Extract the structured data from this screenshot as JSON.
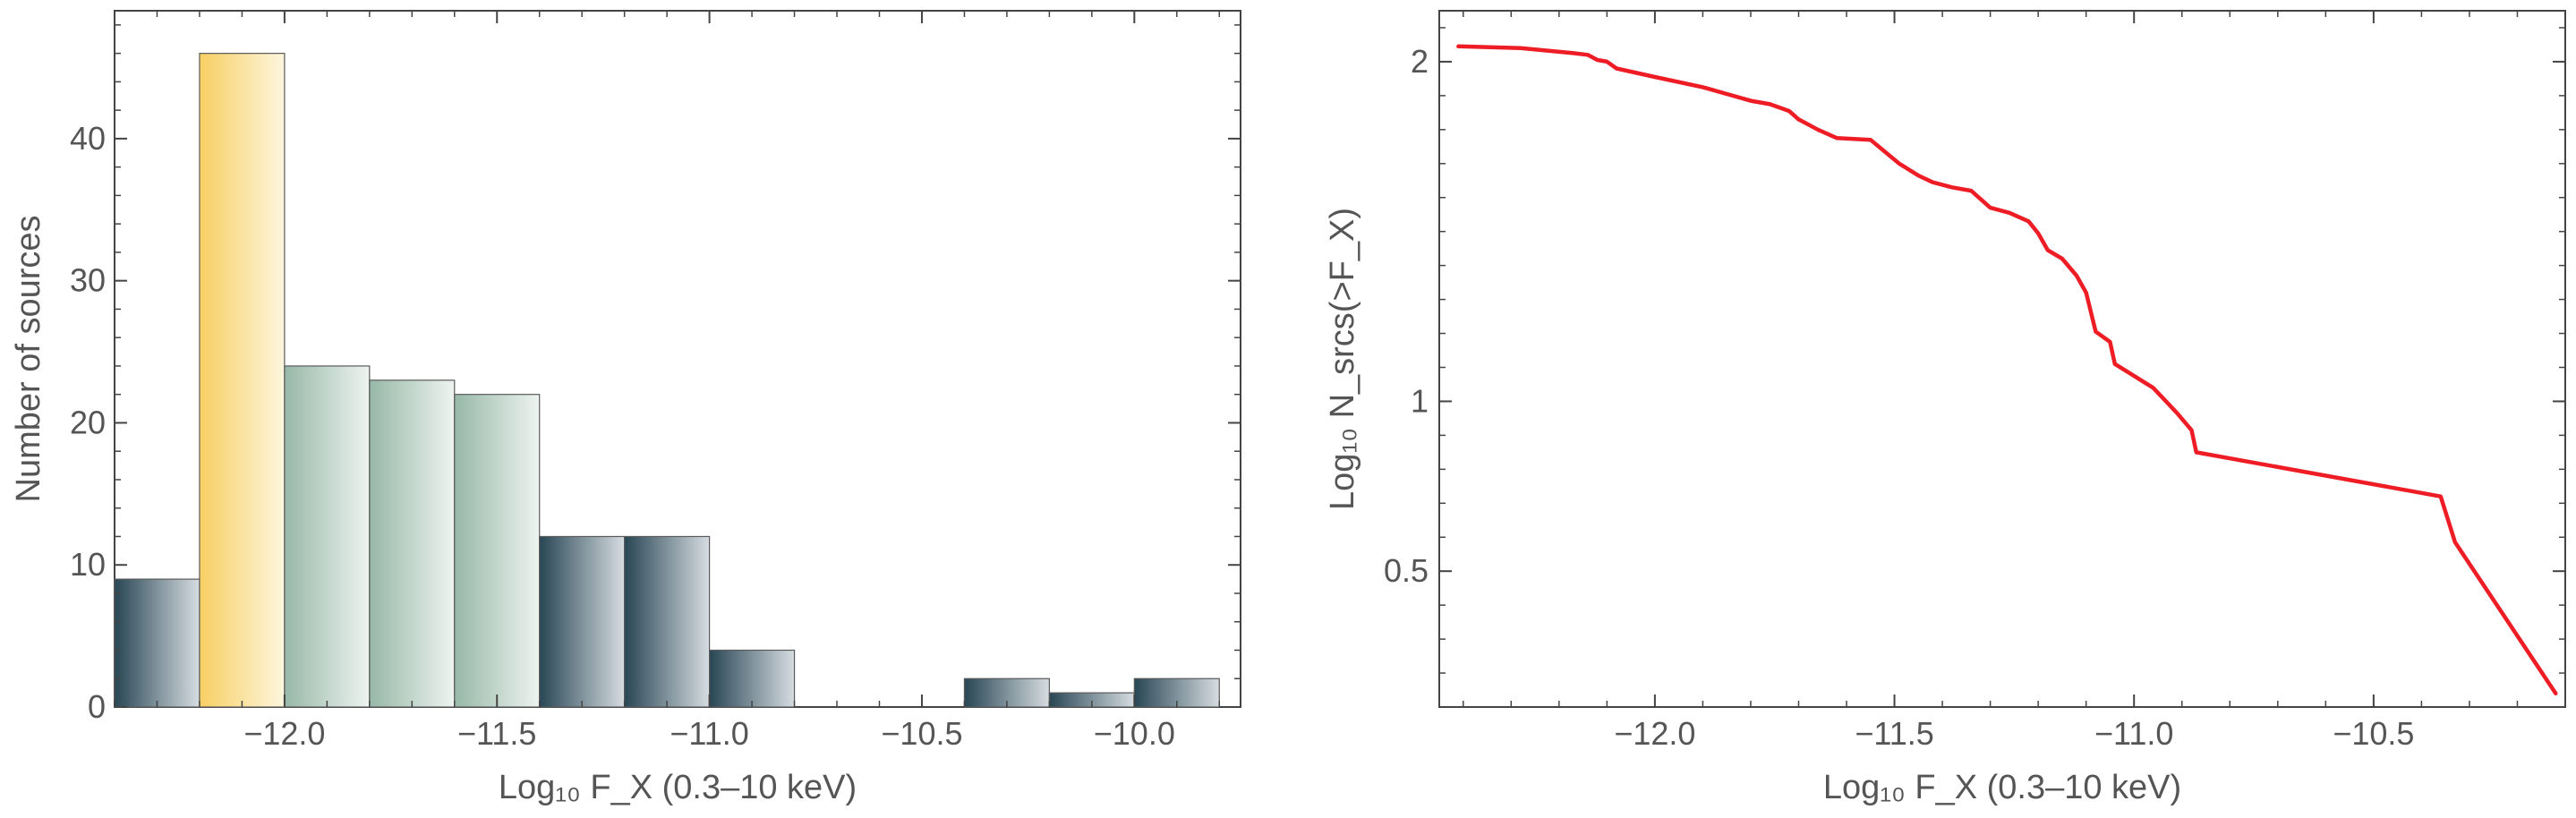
{
  "chart_data": [
    {
      "type": "bar",
      "xlabel": "Log₁₀ F_X (0.3–10 keV)",
      "ylabel": "Number of sources",
      "xlim": [
        -12.4,
        -9.75
      ],
      "ylim": [
        0,
        49
      ],
      "xticks": [
        "−12.0",
        "−11.5",
        "−11.0",
        "−10.5",
        "−10.0"
      ],
      "yticks": [
        "0",
        "10",
        "20",
        "30",
        "40"
      ],
      "bin_edges": [
        -12.4,
        -12.2,
        -12.0,
        -11.8,
        -11.6,
        -11.4,
        -11.2,
        -11.0,
        -10.8,
        -10.6,
        -10.4,
        -10.2,
        -10.0,
        -9.8
      ],
      "values": [
        9,
        46,
        24,
        23,
        22,
        12,
        12,
        4,
        0,
        0,
        2,
        1,
        2
      ],
      "bar_colors": [
        "dark",
        "yellow",
        "green",
        "green",
        "green",
        "dark",
        "dark",
        "dark",
        "dark",
        "dark",
        "dark",
        "dark",
        "dark"
      ],
      "colors": {
        "yellow_start": "#f7cf63",
        "yellow_end": "#fdf6de",
        "green_start": "#97b8a8",
        "green_end": "#eef4f0",
        "dark_start": "#284654",
        "dark_end": "#d6dde1"
      },
      "grid": false
    },
    {
      "type": "line",
      "xlabel": "Log₁₀ F_X (0.3–10 keV)",
      "ylabel": "Log₁₀ N_srcs(>F_X)",
      "xlim": [
        -12.45,
        -10.1
      ],
      "ylim": [
        0.1,
        2.15
      ],
      "xticks": [
        "−12.0",
        "−11.5",
        "−11.0",
        "−10.5"
      ],
      "yticks": [
        "0.5",
        "1",
        "2"
      ],
      "line_color": "#ee1c24",
      "grid": false,
      "series": [
        {
          "x": [
            -12.41,
            -12.28,
            -12.17,
            -12.14,
            -12.12,
            -12.1,
            -12.08,
            -12.0,
            -11.9,
            -11.85,
            -11.8,
            -11.76,
            -11.72,
            -11.7,
            -11.66,
            -11.62,
            -11.55,
            -11.52,
            -11.49,
            -11.45,
            -11.42,
            -11.38,
            -11.34,
            -11.32,
            -11.3,
            -11.26,
            -11.22,
            -11.2,
            -11.18,
            -11.15,
            -11.12,
            -11.1,
            -11.08,
            -11.05,
            -11.04,
            -10.96,
            -10.93,
            -10.91,
            -10.88,
            -10.87,
            -10.36,
            -10.33,
            -10.12
          ],
          "y": [
            2.045,
            2.04,
            2.025,
            2.02,
            2.005,
            2.0,
            1.98,
            1.955,
            1.925,
            1.905,
            1.885,
            1.875,
            1.855,
            1.83,
            1.8,
            1.775,
            1.77,
            1.735,
            1.7,
            1.665,
            1.645,
            1.63,
            1.62,
            1.595,
            1.57,
            1.555,
            1.53,
            1.495,
            1.445,
            1.42,
            1.37,
            1.32,
            1.205,
            1.175,
            1.11,
            1.04,
            0.995,
            0.965,
            0.915,
            0.85,
            0.72,
            0.585,
            0.14
          ]
        }
      ]
    }
  ]
}
